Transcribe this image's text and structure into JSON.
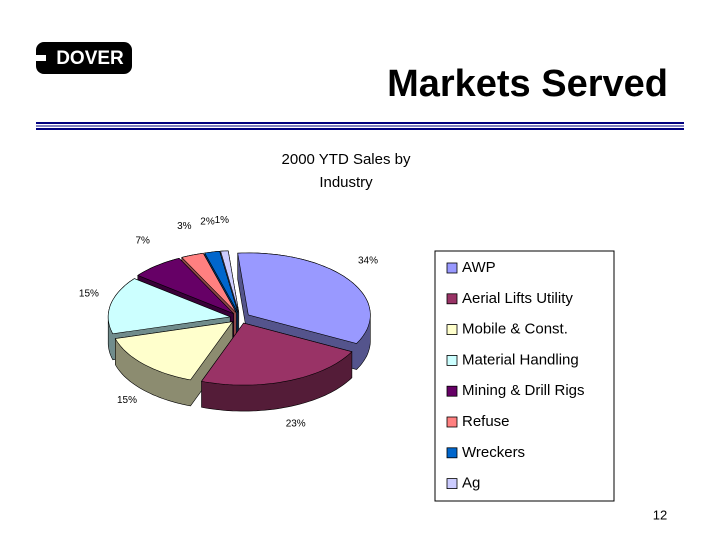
{
  "slide": {
    "logo": "DOVER",
    "title": "Markets Served",
    "page_number": "12"
  },
  "chart_data": {
    "type": "pie",
    "title": "2000 YTD Sales by Industry",
    "categories": [
      "AWP",
      "Aerial Lifts Utility",
      "Mobile & Const.",
      "Material Handling",
      "Mining & Drill Rigs",
      "Refuse",
      "Wreckers",
      "Ag"
    ],
    "values": [
      34,
      23,
      15,
      15,
      7,
      3,
      2,
      1
    ],
    "value_labels": [
      "34%",
      "23%",
      "15%",
      "15%",
      "7%",
      "3%",
      "2%",
      "1%"
    ],
    "colors": [
      "#9999ff",
      "#993366",
      "#ffffcc",
      "#ccffff",
      "#660066",
      "#ff8080",
      "#0066cc",
      "#ccccff"
    ],
    "legend": "right"
  }
}
